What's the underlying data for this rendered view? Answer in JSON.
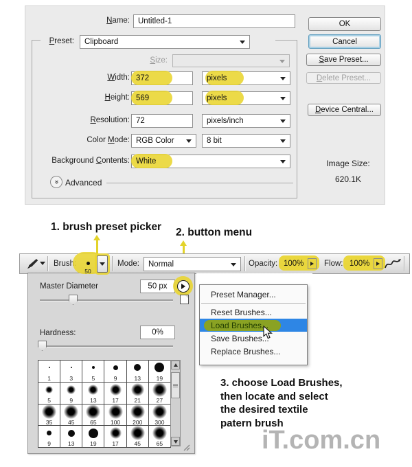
{
  "dialog": {
    "name_label": "Name:",
    "name_value": "Untitled-1",
    "preset_label": "Preset:",
    "preset_value": "Clipboard",
    "size_label": "Size:",
    "width_label": "Width:",
    "width_value": "372",
    "width_unit": "pixels",
    "height_label": "Height:",
    "height_value": "569",
    "height_unit": "pixels",
    "resolution_label": "Resolution:",
    "resolution_value": "72",
    "resolution_unit": "pixels/inch",
    "colormode_label": "Color Mode:",
    "colormode_value": "RGB Color",
    "bitdepth_value": "8 bit",
    "background_label": "Background Contents:",
    "background_value": "White",
    "advanced_label": "Advanced",
    "image_size_label": "Image Size:",
    "image_size_value": "620.1K",
    "buttons": {
      "ok": "OK",
      "cancel": "Cancel",
      "save_preset": "Save Preset...",
      "delete_preset": "Delete Preset...",
      "device_central": "Device Central..."
    }
  },
  "annotations": {
    "step1": "1. brush preset picker",
    "step2": "2. button menu",
    "step3_lines": [
      "3. choose Load Brushes,",
      "then locate and select",
      "the desired textile",
      "patern brush"
    ]
  },
  "options_bar": {
    "brush_label": "Brush:",
    "brush_size": "50",
    "mode_label": "Mode:",
    "mode_value": "Normal",
    "opacity_label": "Opacity:",
    "opacity_value": "100%",
    "flow_label": "Flow:",
    "flow_value": "100%"
  },
  "picker": {
    "master_diameter_label": "Master Diameter",
    "master_diameter_value": "50 px",
    "hardness_label": "Hardness:",
    "hardness_value": "0%",
    "brushes": [
      {
        "size": 1,
        "type": "hard"
      },
      {
        "size": 3,
        "type": "hard"
      },
      {
        "size": 5,
        "type": "hard"
      },
      {
        "size": 9,
        "type": "hard"
      },
      {
        "size": 13,
        "type": "hard"
      },
      {
        "size": 19,
        "type": "hard"
      },
      {
        "size": 5,
        "type": "soft"
      },
      {
        "size": 9,
        "type": "soft"
      },
      {
        "size": 13,
        "type": "soft"
      },
      {
        "size": 17,
        "type": "soft"
      },
      {
        "size": 21,
        "type": "soft"
      },
      {
        "size": 27,
        "type": "soft"
      },
      {
        "size": 35,
        "type": "soft"
      },
      {
        "size": 45,
        "type": "soft"
      },
      {
        "size": 65,
        "type": "soft"
      },
      {
        "size": 100,
        "type": "soft"
      },
      {
        "size": 200,
        "type": "soft"
      },
      {
        "size": 300,
        "type": "soft"
      },
      {
        "size": 9,
        "type": "hard"
      },
      {
        "size": 13,
        "type": "hard"
      },
      {
        "size": 19,
        "type": "hard"
      },
      {
        "size": 17,
        "type": "soft"
      },
      {
        "size": 45,
        "type": "soft"
      },
      {
        "size": 65,
        "type": "soft"
      }
    ]
  },
  "flyout_menu": {
    "items": [
      {
        "label": "Preset Manager...",
        "selected": false,
        "separator_after": true
      },
      {
        "label": "Reset Brushes...",
        "selected": false,
        "separator_after": false
      },
      {
        "label": "Load Brushes...",
        "selected": true,
        "separator_after": false
      },
      {
        "label": "Save Brushes...",
        "selected": false,
        "separator_after": false
      },
      {
        "label": "Replace Brushes...",
        "selected": false,
        "separator_after": false
      }
    ]
  },
  "watermark": "iT.com.cn",
  "colors": {
    "highlight_yellow": "#e9d52f",
    "selection_blue": "#2e86e5",
    "marker_green": "#8fa318"
  }
}
